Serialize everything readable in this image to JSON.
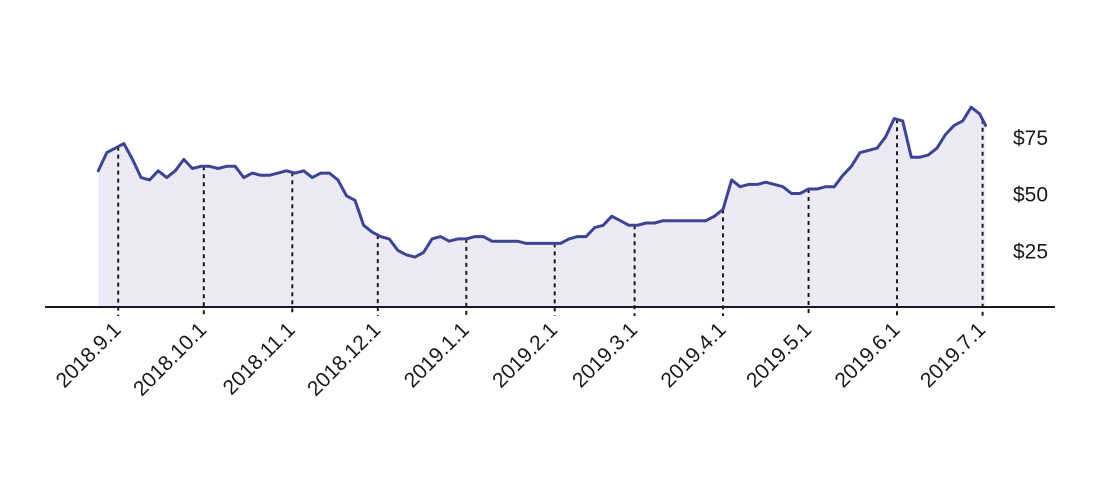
{
  "chart_data": {
    "type": "area",
    "title": "",
    "xlabel": "",
    "ylabel": "",
    "ylim": [
      0,
      95
    ],
    "y_ticks": [
      {
        "value": 25,
        "label": "$25"
      },
      {
        "value": 50,
        "label": "$50"
      },
      {
        "value": 75,
        "label": "$75"
      }
    ],
    "x_ticks": [
      "2018.9.1",
      "2018.10.1",
      "2018.11.1",
      "2018.12.1",
      "2019.1.1",
      "2019.2.1",
      "2019.3.1",
      "2019.4.1",
      "2019.5.1",
      "2019.6.1",
      "2019.7.1"
    ],
    "grid": false,
    "colors": {
      "line": "#3d4494",
      "fill": "#eceaf4",
      "axis": "#1a1a1a",
      "drop": "#1a1a1a"
    },
    "series": [
      {
        "x": [
          "2018-08-25",
          "2018-08-28",
          "2018-08-31",
          "2018-09-03",
          "2018-09-06",
          "2018-09-09",
          "2018-09-12",
          "2018-09-15",
          "2018-09-18",
          "2018-09-21",
          "2018-09-24",
          "2018-09-27",
          "2018-09-30",
          "2018-10-03",
          "2018-10-06",
          "2018-10-09",
          "2018-10-12",
          "2018-10-15",
          "2018-10-18",
          "2018-10-21",
          "2018-10-24",
          "2018-10-27",
          "2018-10-30",
          "2018-11-02",
          "2018-11-05",
          "2018-11-08",
          "2018-11-11",
          "2018-11-14",
          "2018-11-17",
          "2018-11-20",
          "2018-11-23",
          "2018-11-26",
          "2018-11-29",
          "2018-12-02",
          "2018-12-05",
          "2018-12-08",
          "2018-12-11",
          "2018-12-14",
          "2018-12-17",
          "2018-12-20",
          "2018-12-23",
          "2018-12-26",
          "2018-12-29",
          "2019-01-01",
          "2019-01-04",
          "2019-01-07",
          "2019-01-10",
          "2019-01-13",
          "2019-01-16",
          "2019-01-19",
          "2019-01-22",
          "2019-01-25",
          "2019-01-28",
          "2019-01-31",
          "2019-02-03",
          "2019-02-06",
          "2019-02-09",
          "2019-02-12",
          "2019-02-15",
          "2019-02-18",
          "2019-02-21",
          "2019-02-24",
          "2019-02-27",
          "2019-03-02",
          "2019-03-05",
          "2019-03-08",
          "2019-03-11",
          "2019-03-14",
          "2019-03-17",
          "2019-03-20",
          "2019-03-23",
          "2019-03-26",
          "2019-03-29",
          "2019-04-01",
          "2019-04-04",
          "2019-04-07",
          "2019-04-10",
          "2019-04-13",
          "2019-04-16",
          "2019-04-19",
          "2019-04-22",
          "2019-04-25",
          "2019-04-28",
          "2019-05-01",
          "2019-05-04",
          "2019-05-07",
          "2019-05-10",
          "2019-05-13",
          "2019-05-16",
          "2019-05-19",
          "2019-05-22",
          "2019-05-25",
          "2019-05-28",
          "2019-05-31",
          "2019-06-03",
          "2019-06-06",
          "2019-06-09",
          "2019-06-12",
          "2019-06-15",
          "2019-06-18",
          "2019-06-21",
          "2019-06-24",
          "2019-06-27",
          "2019-06-30",
          "2019-07-02"
        ],
        "y": [
          60,
          68,
          70,
          72,
          65,
          57,
          56,
          60,
          57,
          60,
          65,
          61,
          62,
          62,
          61,
          62,
          62,
          57,
          59,
          58,
          58,
          59,
          60,
          59,
          60,
          57,
          59,
          59,
          56,
          49,
          47,
          36,
          33,
          31,
          30,
          25,
          23,
          22,
          24,
          30,
          31,
          29,
          30,
          30,
          31,
          31,
          29,
          29,
          29,
          29,
          28,
          28,
          28,
          28,
          28,
          30,
          31,
          31,
          35,
          36,
          40,
          38,
          36,
          36,
          37,
          37,
          38,
          38,
          38,
          38,
          38,
          38,
          40,
          43,
          56,
          53,
          54,
          54,
          55,
          54,
          53,
          50,
          50,
          52,
          52,
          53,
          53,
          58,
          62,
          68,
          69,
          70,
          75,
          83,
          82,
          66,
          66,
          67,
          70,
          76,
          80,
          82,
          88,
          85,
          80
        ]
      }
    ]
  }
}
